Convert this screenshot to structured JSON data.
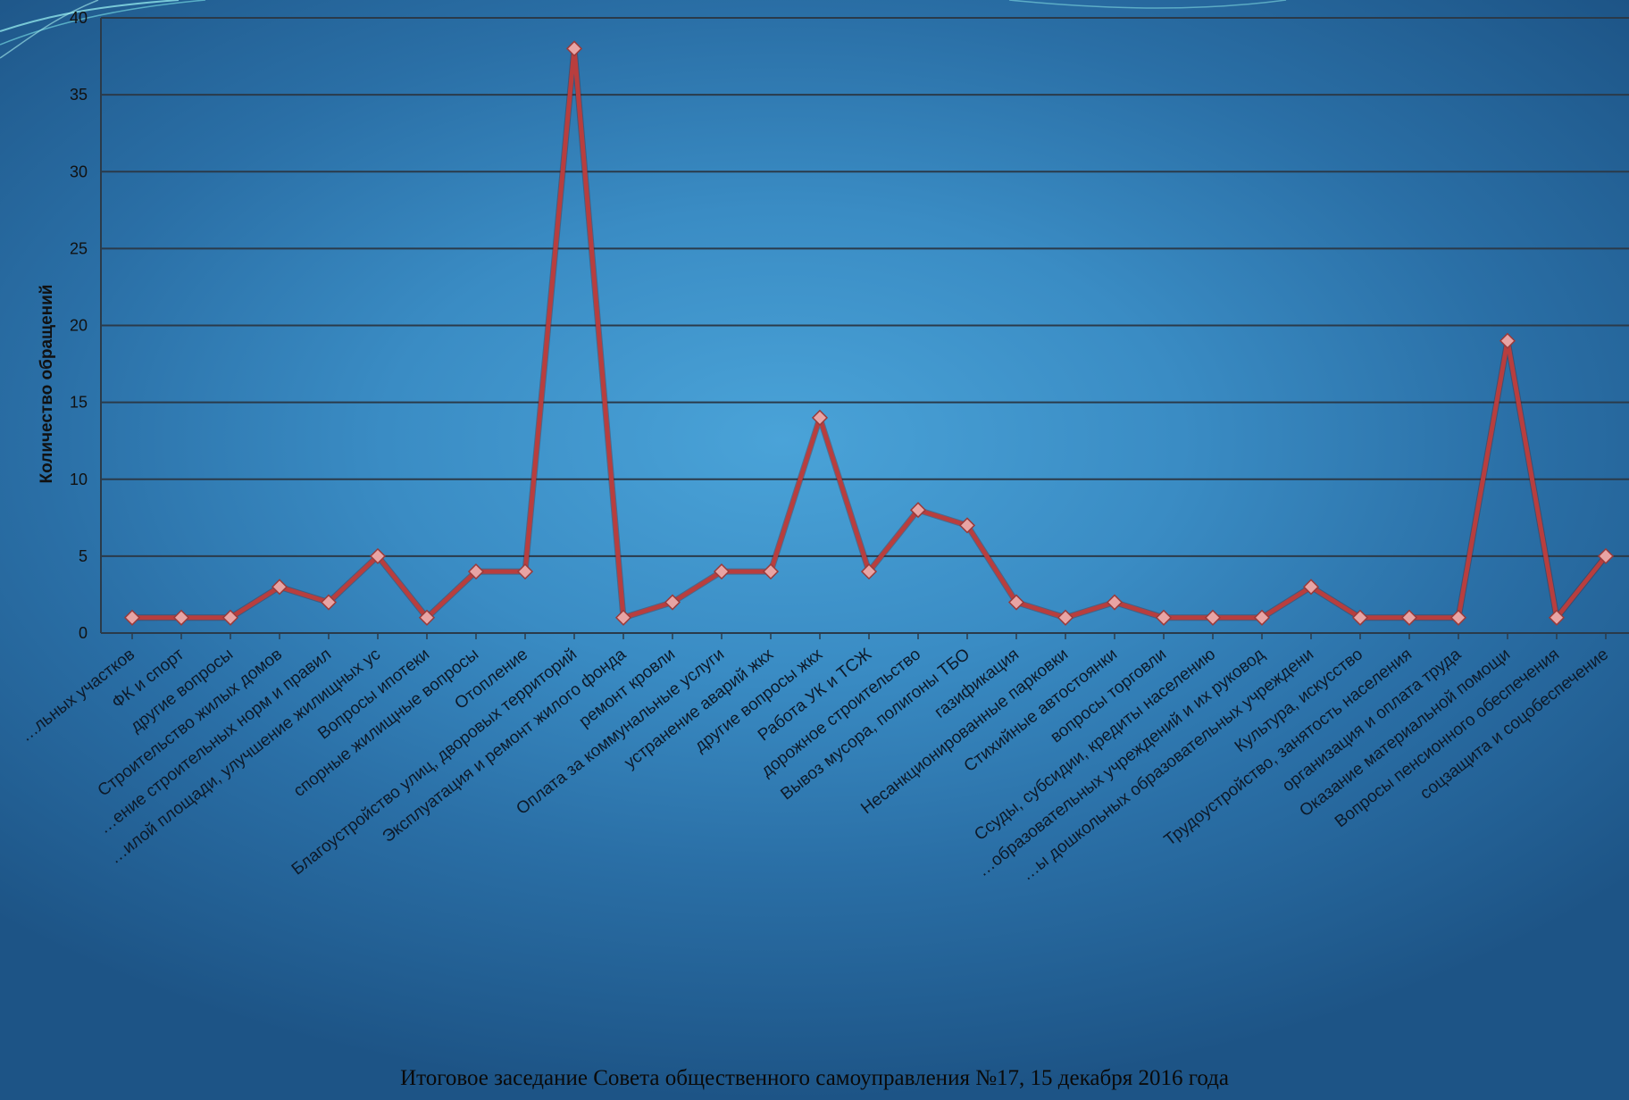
{
  "footer": "Итоговое заседание Совета общественного самоуправления №17, 15 декабря 2016 года",
  "colors": {
    "line": "#b83e3e",
    "marker": "#e8a4a4",
    "grid": "#2a3a4a"
  },
  "chart_data": {
    "type": "line",
    "ylabel": "Количество обращений",
    "ylim": [
      0,
      40
    ],
    "yticks": [
      0,
      5,
      10,
      15,
      20,
      25,
      30,
      35,
      40
    ],
    "grid": true,
    "legend": "none",
    "categories": [
      "…льных участков",
      "ФК и спорт",
      "другие вопросы",
      "Строительство жилых домов",
      "…ение строительных норм и правил",
      "…илой площади, улучшение жилищных ус",
      "Вопросы ипотеки",
      "спорные жилищные вопросы",
      "Отопление",
      "Благоустройство улиц, дворовых территорий",
      "Эксплуатация и ремонт жилого фонда",
      "ремонт кровли",
      "Оплата за коммунальные услуги",
      "устранение аварий жкх",
      "другие вопросы жкх",
      "Работа УК и ТСЖ",
      "дорожное строительство",
      "Вывоз мусора, полигоны ТБО",
      "газификация",
      "Несанкционированные парковки",
      "Стихийные автостоянки",
      "вопросы торговли",
      "Ссуды, субсидии, кредиты населению",
      "…образовательных учреждений и их руковод",
      "…ы дошкольных образовательных учреждени",
      "Культура, искусство",
      "Трудоустройство, занятость населения",
      "организация и оплата труда",
      "Оказание материальной помощи",
      "Вопросы пенсионного обеспечения",
      "соцзащита и соцобеспечение"
    ],
    "series": [
      {
        "values": [
          1,
          1,
          1,
          3,
          2,
          5,
          1,
          4,
          4,
          38,
          1,
          2,
          4,
          4,
          14,
          4,
          8,
          7,
          2,
          1,
          2,
          1,
          1,
          1,
          3,
          1,
          1,
          1,
          19,
          1,
          5
        ]
      }
    ]
  }
}
